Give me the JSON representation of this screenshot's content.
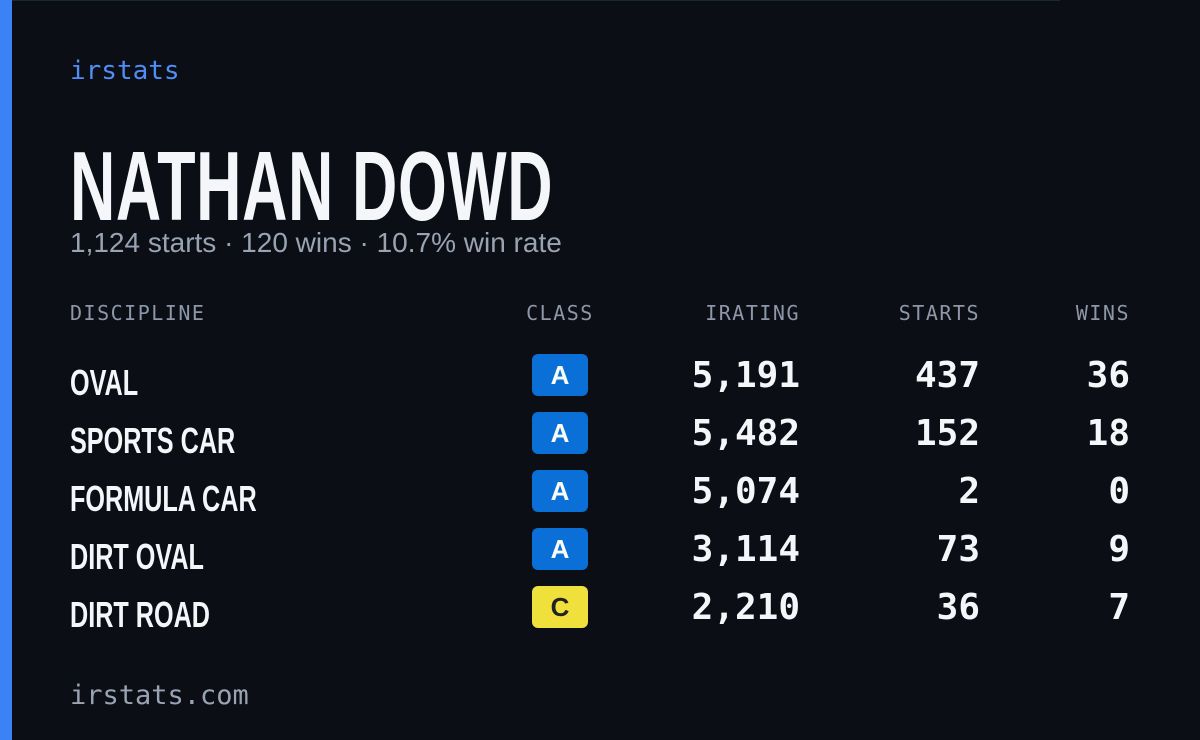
{
  "header": {
    "brand": "irstats",
    "name": "NATHAN DOWD",
    "summary": "1,124 starts · 120 wins · 10.7% win rate"
  },
  "table": {
    "headers": [
      "DISCIPLINE",
      "CLASS",
      "IRATING",
      "STARTS",
      "WINS"
    ],
    "rows": [
      [
        "OVAL",
        "A",
        "5,191",
        "437",
        "36"
      ],
      [
        "SPORTS CAR",
        "A",
        "5,482",
        "152",
        "18"
      ],
      [
        "FORMULA CAR",
        "A",
        "5,074",
        "2",
        "0"
      ],
      [
        "DIRT OVAL",
        "A",
        "3,114",
        "73",
        "9"
      ],
      [
        "DIRT ROAD",
        "C",
        "2,210",
        "36",
        "7"
      ]
    ]
  },
  "footer": {
    "site": "irstats.com"
  }
}
